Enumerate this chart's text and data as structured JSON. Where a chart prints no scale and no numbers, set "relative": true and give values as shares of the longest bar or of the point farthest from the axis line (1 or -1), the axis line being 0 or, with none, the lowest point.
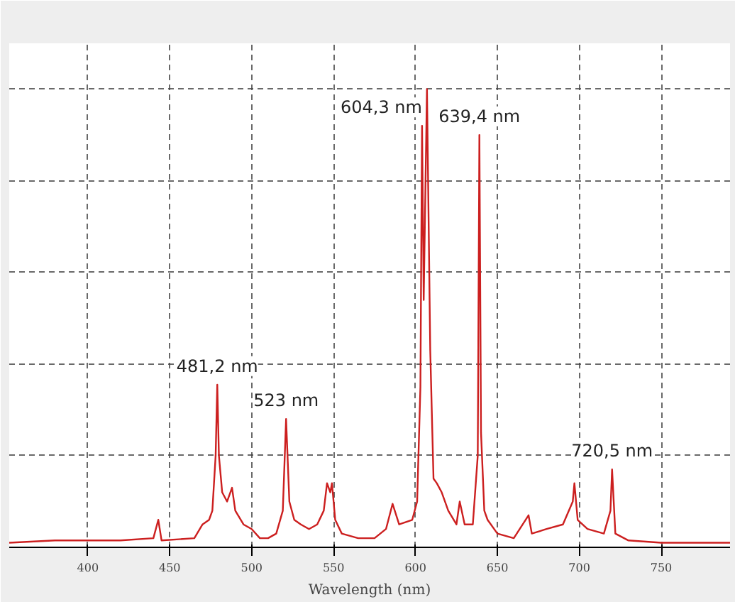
{
  "chart_data": {
    "type": "line",
    "relative": true,
    "xlabel": "Wavelength (nm)",
    "xlim": [
      352,
      792
    ],
    "xticks": [
      400,
      450,
      500,
      550,
      600,
      650,
      700,
      750
    ],
    "grid": true,
    "line_style": "solid",
    "marker": "none",
    "series": [
      {
        "color": "#cc1f1f",
        "x": [
          352,
          380,
          420,
          440,
          443,
          445,
          465,
          470,
          474,
          476,
          478,
          479,
          480,
          482,
          485,
          488,
          490,
          495,
          500,
          505,
          510,
          515,
          519,
          521,
          523,
          526,
          530,
          535,
          540,
          544,
          546,
          548,
          549,
          551,
          555,
          565,
          575,
          582,
          586,
          590,
          598,
          601,
          603,
          604,
          605,
          607,
          609,
          611,
          613,
          616,
          620,
          625,
          627,
          630,
          635,
          638,
          639,
          640,
          642,
          644,
          650,
          660,
          669,
          671,
          680,
          690,
          696,
          697,
          699,
          705,
          715,
          719,
          720,
          722,
          730,
          750,
          770,
          792
        ],
        "values": [
          0.01,
          0.015,
          0.015,
          0.02,
          0.06,
          0.015,
          0.02,
          0.05,
          0.06,
          0.08,
          0.2,
          0.355,
          0.2,
          0.12,
          0.1,
          0.13,
          0.08,
          0.05,
          0.04,
          0.02,
          0.02,
          0.03,
          0.08,
          0.28,
          0.1,
          0.06,
          0.05,
          0.04,
          0.05,
          0.08,
          0.14,
          0.12,
          0.14,
          0.06,
          0.03,
          0.02,
          0.02,
          0.04,
          0.095,
          0.05,
          0.06,
          0.1,
          0.35,
          0.92,
          0.54,
          1.0,
          0.43,
          0.15,
          0.14,
          0.12,
          0.08,
          0.05,
          0.1,
          0.05,
          0.05,
          0.2,
          0.9,
          0.25,
          0.08,
          0.06,
          0.03,
          0.02,
          0.07,
          0.03,
          0.04,
          0.05,
          0.1,
          0.14,
          0.06,
          0.04,
          0.03,
          0.08,
          0.17,
          0.03,
          0.015,
          0.01,
          0.01,
          0.01
        ]
      }
    ],
    "annotations": [
      {
        "text": "481,2 nm",
        "x": 479,
        "y": 0.355
      },
      {
        "text": "523 nm",
        "x": 521,
        "y": 0.28
      },
      {
        "text": "604,3 nm",
        "x": 604,
        "y": 0.92
      },
      {
        "text": "639,4 nm",
        "x": 639,
        "y": 0.9
      },
      {
        "text": "720,5 nm",
        "x": 720,
        "y": 0.17
      }
    ]
  }
}
